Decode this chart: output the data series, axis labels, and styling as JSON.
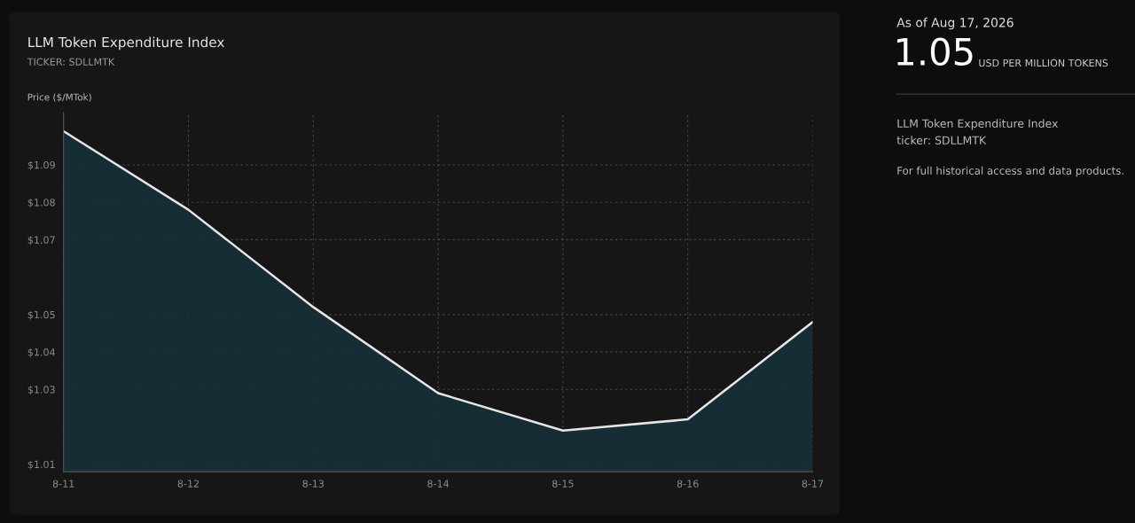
{
  "chart_data": {
    "type": "area",
    "title": "LLM Token Expenditure Index",
    "subtitle": "TICKER: SDLLMTK",
    "ylabel": "Price ($/MTok)",
    "categories": [
      "8-11",
      "8-12",
      "8-13",
      "8-14",
      "8-15",
      "8-16",
      "8-17"
    ],
    "series": [
      {
        "color": "#e6e6e6",
        "values": [
          1.099,
          1.078,
          1.052,
          1.029,
          1.019,
          1.022,
          1.048
        ]
      }
    ],
    "ylim": [
      1.008,
      1.104
    ],
    "yticks": [
      {
        "value": 1.01,
        "label": "$1.01"
      },
      {
        "value": 1.03,
        "label": "$1.03"
      },
      {
        "value": 1.04,
        "label": "$1.04"
      },
      {
        "value": 1.05,
        "label": "$1.05"
      },
      {
        "value": 1.07,
        "label": "$1.07"
      },
      {
        "value": 1.08,
        "label": "$1.08"
      },
      {
        "value": 1.09,
        "label": "$1.09"
      }
    ],
    "grid": true,
    "line_style": "solid",
    "annotations": [
      "As of Aug 17, 2026",
      "1.05",
      "USD PER MILLION TOKENS",
      "LLM Token Expenditure Index",
      "ticker: SDLLMTK",
      "For full historical access and data products."
    ]
  }
}
